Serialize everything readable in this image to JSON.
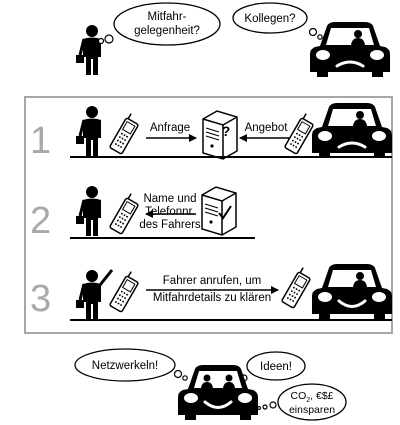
{
  "top": {
    "person_thought": [
      "Mitfahr-",
      "gelegenheit?"
    ],
    "car_thought": "Kollegen?"
  },
  "steps": [
    {
      "number": "1",
      "left_arrow_label": "Anfrage",
      "right_arrow_label": "Angebot",
      "server_icon": "question-mark"
    },
    {
      "number": "2",
      "arrow_label": [
        "Name und",
        "Telefonnr.",
        "des Fahrers"
      ],
      "server_icon": "check-mark"
    },
    {
      "number": "3",
      "arrow_label": [
        "Fahrer anrufen, um",
        "Mitfahrdetails zu klären"
      ]
    }
  ],
  "bottom": {
    "bubble_left": "Netzwerkeln!",
    "bubble_right": "Ideen!",
    "bubble_small": [
      "CO",
      "2",
      ", €$£",
      "einsparen"
    ]
  },
  "colors": {
    "frame": "#a6a6a6",
    "number": "#a8a8a8",
    "ink": "#000000"
  }
}
